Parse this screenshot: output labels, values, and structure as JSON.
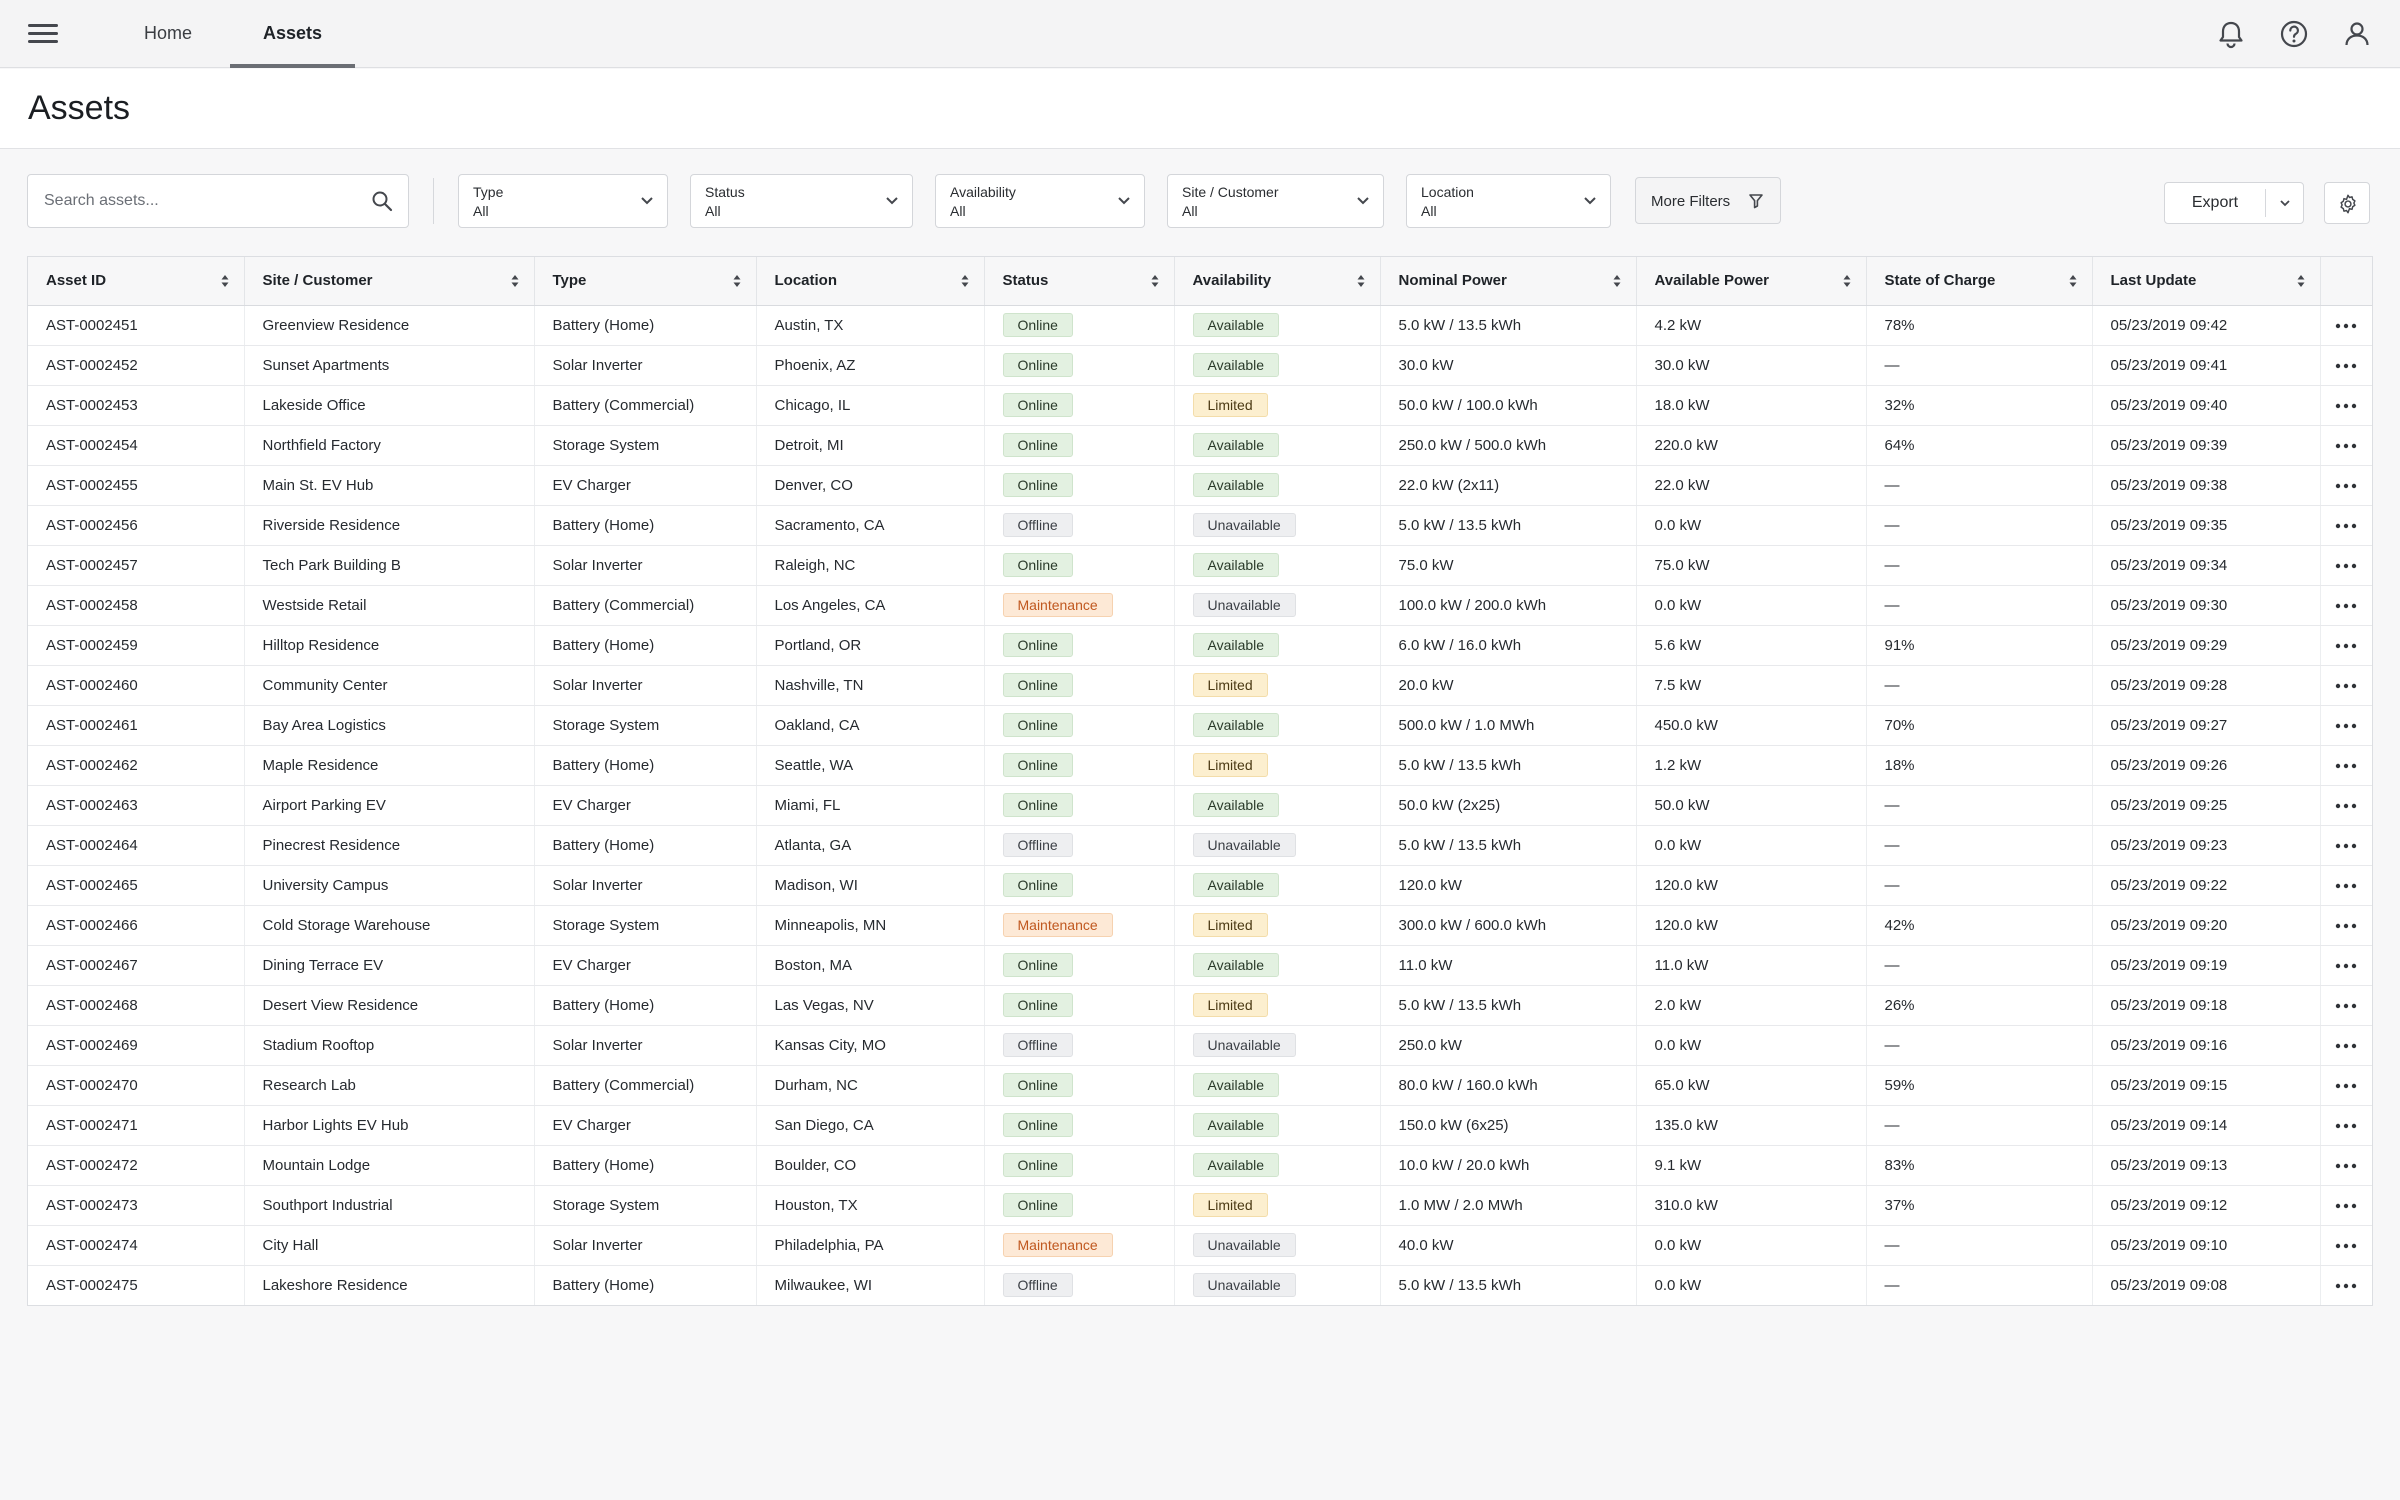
{
  "nav": {
    "tabs": [
      {
        "label": "Home",
        "active": false
      },
      {
        "label": "Assets",
        "active": true
      }
    ],
    "icons": [
      "menu-icon",
      "bell-icon",
      "help-icon",
      "user-icon"
    ]
  },
  "page": {
    "title": "Assets"
  },
  "toolbar": {
    "search_placeholder": "Search assets...",
    "filters": [
      {
        "label": "Type",
        "value": "All"
      },
      {
        "label": "Status",
        "value": "All"
      },
      {
        "label": "Availability",
        "value": "All"
      },
      {
        "label": "Site / Customer",
        "value": "All"
      },
      {
        "label": "Location",
        "value": "All"
      }
    ],
    "more_filters_label": "More Filters",
    "export_label": "Export"
  },
  "table": {
    "columns": [
      "Asset ID",
      "Site / Customer",
      "Type",
      "Location",
      "Status",
      "Availability",
      "Nominal Power",
      "Available Power",
      "State of Charge",
      "Last Update"
    ],
    "rows": [
      [
        "AST-0002451",
        "Greenview Residence",
        "Battery (Home)",
        "Austin, TX",
        "Online",
        "Available",
        "5.0 kW / 13.5 kWh",
        "4.2 kW",
        "78%",
        "05/23/2019 09:42"
      ],
      [
        "AST-0002452",
        "Sunset Apartments",
        "Solar Inverter",
        "Phoenix, AZ",
        "Online",
        "Available",
        "30.0 kW",
        "30.0 kW",
        "—",
        "05/23/2019 09:41"
      ],
      [
        "AST-0002453",
        "Lakeside Office",
        "Battery (Commercial)",
        "Chicago, IL",
        "Online",
        "Limited",
        "50.0 kW / 100.0 kWh",
        "18.0 kW",
        "32%",
        "05/23/2019 09:40"
      ],
      [
        "AST-0002454",
        "Northfield Factory",
        "Storage System",
        "Detroit, MI",
        "Online",
        "Available",
        "250.0 kW / 500.0 kWh",
        "220.0 kW",
        "64%",
        "05/23/2019 09:39"
      ],
      [
        "AST-0002455",
        "Main St. EV Hub",
        "EV Charger",
        "Denver, CO",
        "Online",
        "Available",
        "22.0 kW (2x11)",
        "22.0 kW",
        "—",
        "05/23/2019 09:38"
      ],
      [
        "AST-0002456",
        "Riverside Residence",
        "Battery (Home)",
        "Sacramento, CA",
        "Offline",
        "Unavailable",
        "5.0 kW / 13.5 kWh",
        "0.0 kW",
        "—",
        "05/23/2019 09:35"
      ],
      [
        "AST-0002457",
        "Tech Park Building B",
        "Solar Inverter",
        "Raleigh, NC",
        "Online",
        "Available",
        "75.0 kW",
        "75.0 kW",
        "—",
        "05/23/2019 09:34"
      ],
      [
        "AST-0002458",
        "Westside Retail",
        "Battery (Commercial)",
        "Los Angeles, CA",
        "Maintenance",
        "Unavailable",
        "100.0 kW / 200.0 kWh",
        "0.0 kW",
        "—",
        "05/23/2019 09:30"
      ],
      [
        "AST-0002459",
        "Hilltop Residence",
        "Battery (Home)",
        "Portland, OR",
        "Online",
        "Available",
        "6.0 kW / 16.0 kWh",
        "5.6 kW",
        "91%",
        "05/23/2019 09:29"
      ],
      [
        "AST-0002460",
        "Community Center",
        "Solar Inverter",
        "Nashville, TN",
        "Online",
        "Limited",
        "20.0 kW",
        "7.5 kW",
        "—",
        "05/23/2019 09:28"
      ],
      [
        "AST-0002461",
        "Bay Area Logistics",
        "Storage System",
        "Oakland, CA",
        "Online",
        "Available",
        "500.0 kW / 1.0 MWh",
        "450.0 kW",
        "70%",
        "05/23/2019 09:27"
      ],
      [
        "AST-0002462",
        "Maple Residence",
        "Battery (Home)",
        "Seattle, WA",
        "Online",
        "Limited",
        "5.0 kW / 13.5 kWh",
        "1.2 kW",
        "18%",
        "05/23/2019 09:26"
      ],
      [
        "AST-0002463",
        "Airport Parking EV",
        "EV Charger",
        "Miami, FL",
        "Online",
        "Available",
        "50.0 kW (2x25)",
        "50.0 kW",
        "—",
        "05/23/2019 09:25"
      ],
      [
        "AST-0002464",
        "Pinecrest Residence",
        "Battery (Home)",
        "Atlanta, GA",
        "Offline",
        "Unavailable",
        "5.0 kW / 13.5 kWh",
        "0.0 kW",
        "—",
        "05/23/2019 09:23"
      ],
      [
        "AST-0002465",
        "University Campus",
        "Solar Inverter",
        "Madison, WI",
        "Online",
        "Available",
        "120.0 kW",
        "120.0 kW",
        "—",
        "05/23/2019 09:22"
      ],
      [
        "AST-0002466",
        "Cold Storage Warehouse",
        "Storage System",
        "Minneapolis, MN",
        "Maintenance",
        "Limited",
        "300.0 kW / 600.0 kWh",
        "120.0 kW",
        "42%",
        "05/23/2019 09:20"
      ],
      [
        "AST-0002467",
        "Dining Terrace EV",
        "EV Charger",
        "Boston, MA",
        "Online",
        "Available",
        "11.0 kW",
        "11.0 kW",
        "—",
        "05/23/2019 09:19"
      ],
      [
        "AST-0002468",
        "Desert View Residence",
        "Battery (Home)",
        "Las Vegas, NV",
        "Online",
        "Limited",
        "5.0 kW / 13.5 kWh",
        "2.0 kW",
        "26%",
        "05/23/2019 09:18"
      ],
      [
        "AST-0002469",
        "Stadium Rooftop",
        "Solar Inverter",
        "Kansas City, MO",
        "Offline",
        "Unavailable",
        "250.0 kW",
        "0.0 kW",
        "—",
        "05/23/2019 09:16"
      ],
      [
        "AST-0002470",
        "Research Lab",
        "Battery (Commercial)",
        "Durham, NC",
        "Online",
        "Available",
        "80.0 kW / 160.0 kWh",
        "65.0 kW",
        "59%",
        "05/23/2019 09:15"
      ],
      [
        "AST-0002471",
        "Harbor Lights EV Hub",
        "EV Charger",
        "San Diego, CA",
        "Online",
        "Available",
        "150.0 kW (6x25)",
        "135.0 kW",
        "—",
        "05/23/2019 09:14"
      ],
      [
        "AST-0002472",
        "Mountain Lodge",
        "Battery (Home)",
        "Boulder, CO",
        "Online",
        "Available",
        "10.0 kW / 20.0 kWh",
        "9.1 kW",
        "83%",
        "05/23/2019 09:13"
      ],
      [
        "AST-0002473",
        "Southport Industrial",
        "Storage System",
        "Houston, TX",
        "Online",
        "Limited",
        "1.0 MW / 2.0 MWh",
        "310.0 kW",
        "37%",
        "05/23/2019 09:12"
      ],
      [
        "AST-0002474",
        "City Hall",
        "Solar Inverter",
        "Philadelphia, PA",
        "Maintenance",
        "Unavailable",
        "40.0 kW",
        "0.0 kW",
        "—",
        "05/23/2019 09:10"
      ],
      [
        "AST-0002475",
        "Lakeshore Residence",
        "Battery (Home)",
        "Milwaukee, WI",
        "Offline",
        "Unavailable",
        "5.0 kW / 13.5 kWh",
        "0.0 kW",
        "—",
        "05/23/2019 09:08"
      ]
    ]
  },
  "colors": {
    "online_bg": "#e3f1e1",
    "maintenance_fg": "#c0581f",
    "limited_bg": "#fcefcf",
    "offline_bg": "#eeeff1"
  }
}
